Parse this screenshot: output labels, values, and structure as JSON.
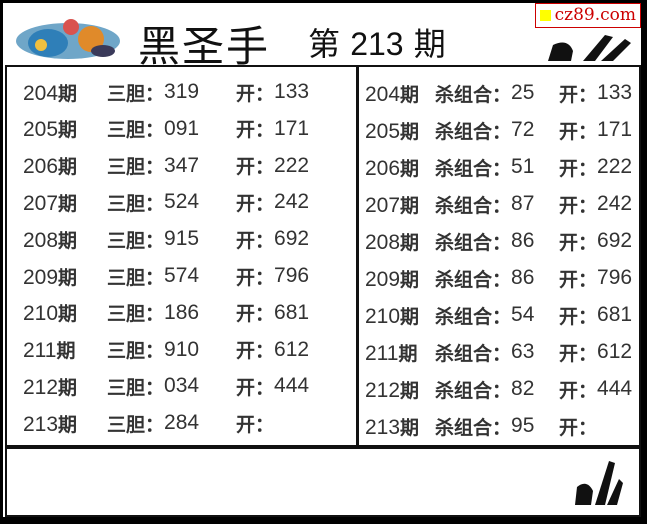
{
  "header": {
    "title": "黑圣手",
    "issue_prefix": "第",
    "issue_number": "213",
    "issue_suffix": "期",
    "watermark": "cz89.com",
    "watermark_color": "#cc0000"
  },
  "left": {
    "label": "三胆：",
    "open_label": "开：",
    "rows": [
      {
        "period": "204",
        "period_suffix": "期",
        "value": "319",
        "open": "133"
      },
      {
        "period": "205",
        "period_suffix": "期",
        "value": "091",
        "open": "171"
      },
      {
        "period": "206",
        "period_suffix": "期",
        "value": "347",
        "open": "222"
      },
      {
        "period": "207",
        "period_suffix": "期",
        "value": "524",
        "open": "242"
      },
      {
        "period": "208",
        "period_suffix": "期",
        "value": "915",
        "open": "692"
      },
      {
        "period": "209",
        "period_suffix": "期",
        "value": "574",
        "open": "796"
      },
      {
        "period": "210",
        "period_suffix": "期",
        "value": "186",
        "open": "681"
      },
      {
        "period": "211",
        "period_suffix": "期",
        "value": "910",
        "open": "612"
      },
      {
        "period": "212",
        "period_suffix": "期",
        "value": "034",
        "open": "444"
      },
      {
        "period": "213",
        "period_suffix": "期",
        "value": "284",
        "open": ""
      }
    ]
  },
  "right": {
    "label": "杀组合：",
    "open_label": "开：",
    "rows": [
      {
        "period": "204",
        "period_suffix": "期",
        "value": "25",
        "open": "133"
      },
      {
        "period": "205",
        "period_suffix": "期",
        "value": "72",
        "open": "171"
      },
      {
        "period": "206",
        "period_suffix": "期",
        "value": "51",
        "open": "222"
      },
      {
        "period": "207",
        "period_suffix": "期",
        "value": "87",
        "open": "242"
      },
      {
        "period": "208",
        "period_suffix": "期",
        "value": "86",
        "open": "692"
      },
      {
        "period": "209",
        "period_suffix": "期",
        "value": "86",
        "open": "796"
      },
      {
        "period": "210",
        "period_suffix": "期",
        "value": "54",
        "open": "681"
      },
      {
        "period": "211",
        "period_suffix": "期",
        "value": "63",
        "open": "612"
      },
      {
        "period": "212",
        "period_suffix": "期",
        "value": "82",
        "open": "444"
      },
      {
        "period": "213",
        "period_suffix": "期",
        "value": "95",
        "open": ""
      }
    ]
  },
  "icons": {
    "logo": "colorful-orb-logo",
    "ok": "ok-hand-sign"
  }
}
